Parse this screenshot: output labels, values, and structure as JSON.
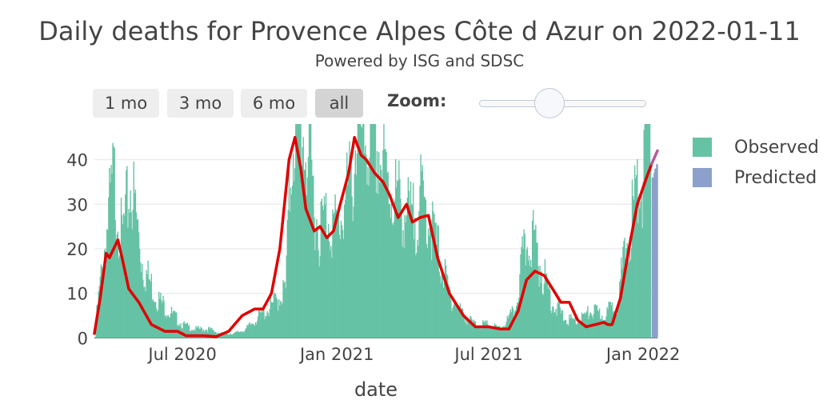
{
  "title": "Daily deaths for Provence Alpes Côte d Azur on 2022-01-11",
  "subtitle": "Powered by ISG and SDSC",
  "range_selector": {
    "buttons": [
      {
        "label": "1 mo",
        "active": false
      },
      {
        "label": "3 mo",
        "active": false
      },
      {
        "label": "6 mo",
        "active": false
      },
      {
        "label": "all",
        "active": true
      }
    ],
    "zoom_label": "Zoom:"
  },
  "legend": {
    "observed": "Observed",
    "predicted": "Predicted",
    "observed_color": "#66c2a5",
    "predicted_color": "#8da0cb"
  },
  "xaxis_label": "date",
  "chart_data": {
    "type": "bar",
    "title": "Daily deaths for Provence Alpes Côte d Azur on 2022-01-11",
    "xlabel": "date",
    "ylabel": "",
    "x_ticks": [
      "Jul 2020",
      "Jan 2021",
      "Jul 2021",
      "Jan 2022"
    ],
    "y_ticks": [
      0,
      10,
      20,
      30,
      40
    ],
    "ylim": [
      -1,
      48
    ],
    "xlim": [
      "2020-03-18",
      "2022-01-18"
    ],
    "grid": true,
    "legend_position": "right",
    "series": [
      {
        "name": "Observed",
        "type": "bar",
        "color": "#66c2a5",
        "x": [
          "2020-03-20",
          "2020-04-01",
          "2020-04-10",
          "2020-04-20",
          "2020-04-25",
          "2020-05-01",
          "2020-05-15",
          "2020-06-01",
          "2020-06-15",
          "2020-07-01",
          "2020-07-15",
          "2020-08-01",
          "2020-08-15",
          "2020-09-01",
          "2020-09-15",
          "2020-10-01",
          "2020-10-15",
          "2020-11-01",
          "2020-11-05",
          "2020-11-10",
          "2020-11-20",
          "2020-12-01",
          "2020-12-10",
          "2020-12-20",
          "2021-01-01",
          "2021-01-10",
          "2021-01-20",
          "2021-01-26",
          "2021-02-01",
          "2021-02-10",
          "2021-02-20",
          "2021-03-01",
          "2021-03-15",
          "2021-04-01",
          "2021-04-10",
          "2021-04-20",
          "2021-05-01",
          "2021-05-15",
          "2021-06-01",
          "2021-06-15",
          "2021-07-01",
          "2021-07-15",
          "2021-08-01",
          "2021-08-10",
          "2021-08-20",
          "2021-09-01",
          "2021-09-15",
          "2021-10-01",
          "2021-10-15",
          "2021-11-01",
          "2021-11-15",
          "2021-12-01",
          "2021-12-10",
          "2021-12-20",
          "2022-01-01",
          "2022-01-05",
          "2022-01-10"
        ],
        "values": [
          4,
          23,
          36,
          22,
          28,
          35,
          16,
          9,
          6,
          3,
          2,
          2,
          1,
          1,
          2,
          5,
          7,
          11,
          30,
          48,
          48,
          37,
          24,
          28,
          24,
          30,
          36,
          50,
          44,
          45,
          42,
          35,
          31,
          26,
          31,
          28,
          20,
          10,
          5,
          3,
          3,
          2,
          6,
          17,
          24,
          16,
          8,
          4,
          4,
          6,
          5,
          8,
          18,
          29,
          38,
          48,
          44
        ]
      },
      {
        "name": "Predicted",
        "type": "bar",
        "color": "#8da0cb",
        "x": [
          "2022-01-12",
          "2022-01-13",
          "2022-01-14",
          "2022-01-15",
          "2022-01-16",
          "2022-01-17",
          "2022-01-18"
        ],
        "values": [
          36,
          36,
          37,
          38,
          38,
          39,
          39
        ]
      },
      {
        "name": "",
        "type": "line",
        "color": "#e00000",
        "x": [
          "2020-03-18",
          "2020-03-25",
          "2020-04-01",
          "2020-04-05",
          "2020-04-10",
          "2020-04-15",
          "2020-04-20",
          "2020-04-28",
          "2020-05-10",
          "2020-05-25",
          "2020-06-10",
          "2020-06-25",
          "2020-07-05",
          "2020-07-25",
          "2020-08-10",
          "2020-08-25",
          "2020-09-10",
          "2020-09-25",
          "2020-10-05",
          "2020-10-15",
          "2020-10-25",
          "2020-11-05",
          "2020-11-12",
          "2020-11-19",
          "2020-11-25",
          "2020-12-05",
          "2020-12-12",
          "2020-12-20",
          "2020-12-28",
          "2021-01-05",
          "2021-01-15",
          "2021-01-22",
          "2021-01-30",
          "2021-02-05",
          "2021-02-15",
          "2021-02-25",
          "2021-03-05",
          "2021-03-15",
          "2021-03-25",
          "2021-04-01",
          "2021-04-10",
          "2021-04-20",
          "2021-05-01",
          "2021-05-15",
          "2021-06-01",
          "2021-06-15",
          "2021-07-01",
          "2021-07-15",
          "2021-07-25",
          "2021-08-05",
          "2021-08-15",
          "2021-08-25",
          "2021-09-05",
          "2021-09-15",
          "2021-09-25",
          "2021-10-05",
          "2021-10-15",
          "2021-10-25",
          "2021-11-05",
          "2021-11-15",
          "2021-11-20",
          "2021-11-25",
          "2021-12-05",
          "2021-12-15",
          "2021-12-25",
          "2022-01-05",
          "2022-01-11"
        ],
        "values": [
          1,
          9,
          19,
          18,
          20,
          22,
          18,
          11,
          8,
          3,
          1.5,
          1.5,
          0.5,
          0.5,
          0.3,
          1.5,
          5,
          6.5,
          6.5,
          10,
          20,
          40,
          45,
          38,
          29,
          24,
          25,
          22.5,
          24,
          30,
          37,
          45,
          41,
          40,
          37,
          35,
          32,
          27,
          30,
          26,
          27,
          27.5,
          18,
          10,
          5,
          2.5,
          2.5,
          2,
          2,
          6,
          13,
          15,
          14,
          11,
          8,
          8,
          4,
          2.5,
          3,
          3.5,
          3,
          3,
          9,
          20,
          30,
          36,
          39
        ]
      },
      {
        "name": "",
        "type": "line",
        "color": "#b85a9b",
        "x": [
          "2022-01-11",
          "2022-01-18"
        ],
        "values": [
          39,
          42
        ]
      }
    ]
  }
}
